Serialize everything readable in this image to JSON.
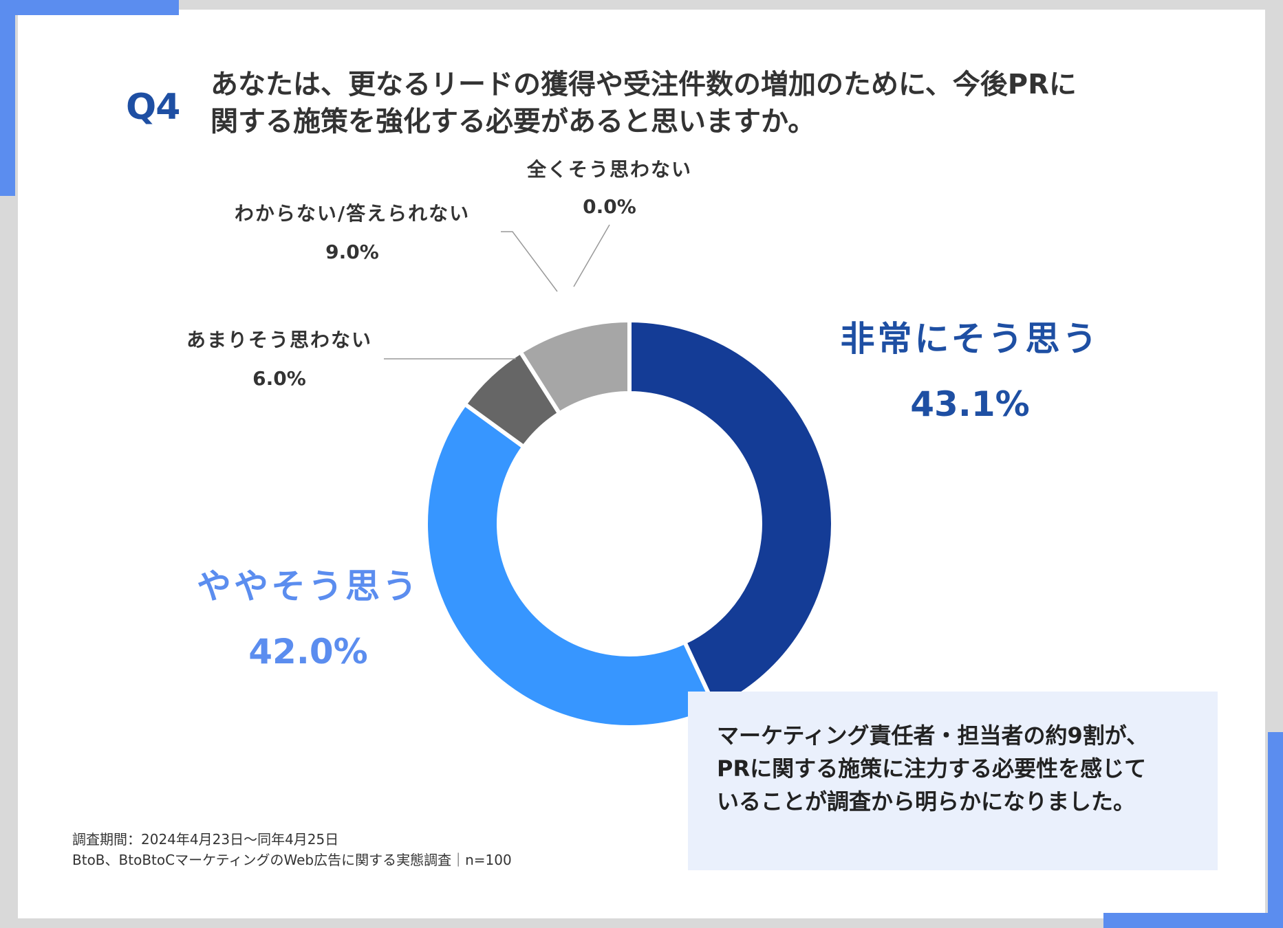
{
  "question": {
    "number": "Q4",
    "line1": "あなたは、更なるリードの獲得や受注件数の増加のために、今後PRに",
    "line2": "関する施策を強化する必要があると思いますか。"
  },
  "chart_data": {
    "type": "pie",
    "donut": true,
    "slices": [
      {
        "label": "非常にそう思う",
        "value": 43.1,
        "display": "43.1%",
        "color": "#143c96"
      },
      {
        "label": "ややそう思う",
        "value": 42.0,
        "display": "42.0%",
        "color": "#3796ff"
      },
      {
        "label": "あまりそう思わない",
        "value": 6.0,
        "display": "6.0%",
        "color": "#666666"
      },
      {
        "label": "わからない/答えられない",
        "value": 9.0,
        "display": "9.0%",
        "color": "#a6a6a6"
      },
      {
        "label": "全くそう思わない",
        "value": 0.0,
        "display": "0.0%",
        "color": "#cccccc"
      }
    ],
    "label_colors": {
      "strongly_agree": "#1e4fa3",
      "somewhat_agree": "#5b8def",
      "minor": "#333333"
    }
  },
  "summary": {
    "line1": "マーケティング責任者・担当者の約9割が、",
    "line2": "PRに関する施策に注力する必要性を感じて",
    "line3": "いることが調査から明らかになりました。"
  },
  "footnote": {
    "period": "調査期間：2024年4月23日～同年4月25日",
    "survey": "BtoB、BtoBtoCマーケティングのWeb広告に関する実態調査｜n=100"
  }
}
